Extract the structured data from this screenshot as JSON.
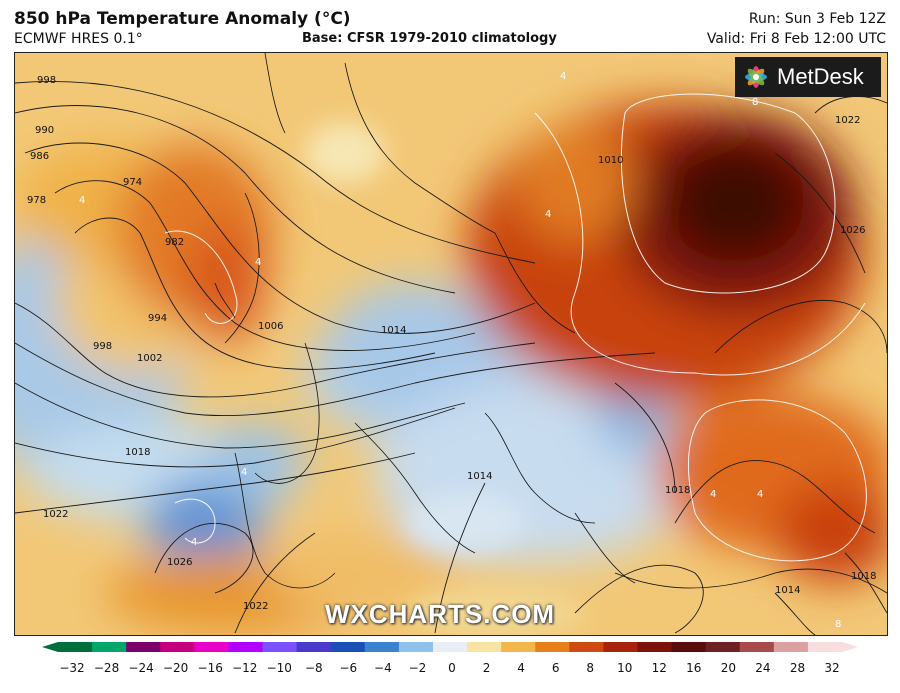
{
  "header": {
    "title": "850 hPa Temperature Anomaly (°C)",
    "model": "ECMWF HRES 0.1°",
    "base": "Base: CFSR 1979-2010 climatology",
    "run": "Run: Sun 3 Feb 12Z",
    "valid": "Valid: Fri 8 Feb 12:00 UTC"
  },
  "logo": {
    "icon": "metdesk-flower-icon",
    "text": "MetDesk"
  },
  "watermark": "WXCHARTS.COM",
  "colorbar": {
    "ticks": [
      "−32",
      "−28",
      "−24",
      "−20",
      "−16",
      "−12",
      "−10",
      "−8",
      "−6",
      "−4",
      "−2",
      "0",
      "2",
      "4",
      "6",
      "8",
      "10",
      "12",
      "16",
      "20",
      "24",
      "28",
      "32"
    ],
    "colors": [
      "#006f3c",
      "#00a66a",
      "#7a006e",
      "#c40080",
      "#e600c8",
      "#b400ff",
      "#7a50ff",
      "#4a3acb",
      "#1a4fb5",
      "#3b82d0",
      "#8ec2ec",
      "#e8eef4",
      "#f7e3a2",
      "#f3b64a",
      "#e8801a",
      "#cf4a12",
      "#a8220c",
      "#7c1208",
      "#5a0c08",
      "#6e1f1f",
      "#a84a4a",
      "#dba0a0",
      "#f8dede"
    ]
  },
  "isobar_labels": [
    "998",
    "990",
    "986",
    "978",
    "974",
    "982",
    "994",
    "998",
    "1002",
    "1006",
    "1014",
    "1018",
    "1022",
    "1026",
    "1022",
    "1010",
    "1014",
    "1018",
    "1022",
    "1026",
    "1018",
    "1014"
  ],
  "anomaly_labels": [
    "4",
    "4",
    "4",
    "8",
    "4",
    "4",
    "4",
    "4",
    "4",
    "8"
  ]
}
